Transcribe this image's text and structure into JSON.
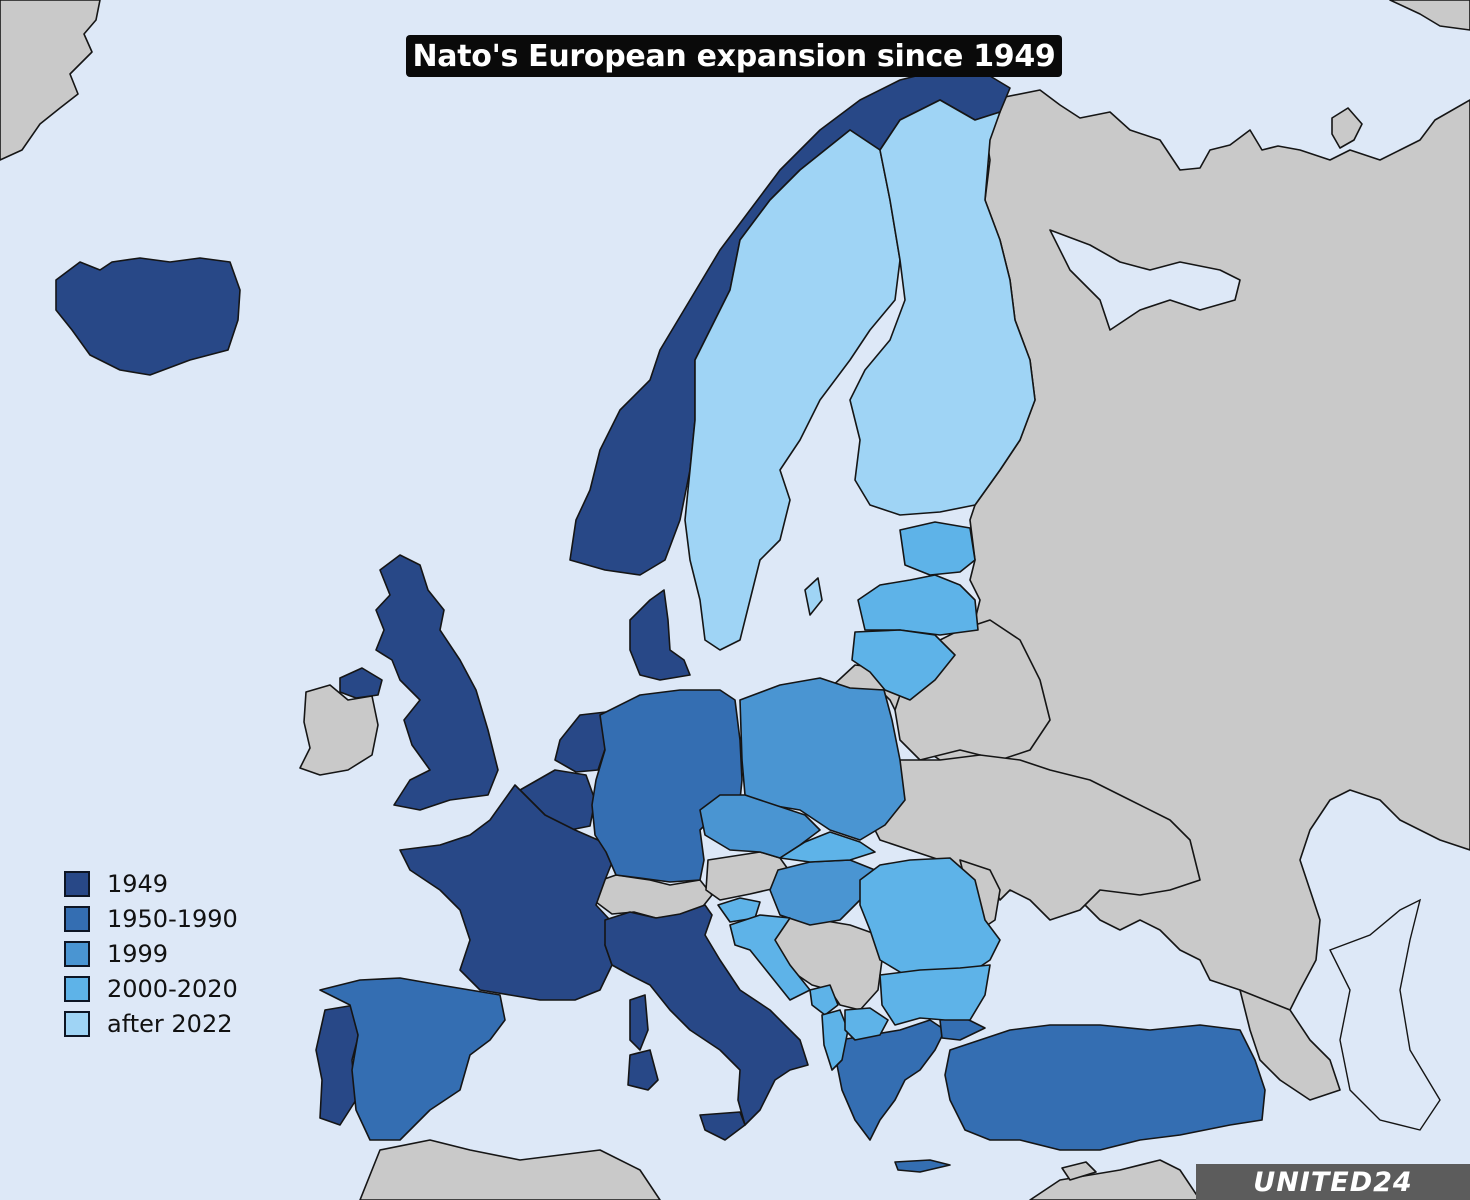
{
  "title": "Nato's European expansion since 1949",
  "colors": {
    "sea": "#dde8f7",
    "non_member": "#c9c9c9",
    "border": "#151515"
  },
  "legend": [
    {
      "label": "1949",
      "color": "#284887"
    },
    {
      "label": "1950-1990",
      "color": "#346eb2"
    },
    {
      "label": "1999",
      "color": "#4a95d2"
    },
    {
      "label": "2000-2020",
      "color": "#5eb3e8"
    },
    {
      "label": "after 2022",
      "color": "#9fd4f5"
    }
  ],
  "countries": [
    {
      "name": "Iceland",
      "group": "1949"
    },
    {
      "name": "Norway",
      "group": "1949"
    },
    {
      "name": "United Kingdom",
      "group": "1949"
    },
    {
      "name": "Denmark",
      "group": "1949"
    },
    {
      "name": "Netherlands",
      "group": "1949"
    },
    {
      "name": "Belgium",
      "group": "1949"
    },
    {
      "name": "Luxembourg",
      "group": "1949"
    },
    {
      "name": "France",
      "group": "1949"
    },
    {
      "name": "Italy",
      "group": "1949"
    },
    {
      "name": "Portugal",
      "group": "1949"
    },
    {
      "name": "Greece",
      "group": "1950-1990"
    },
    {
      "name": "Turkey",
      "group": "1950-1990"
    },
    {
      "name": "Germany",
      "group": "1950-1990"
    },
    {
      "name": "Spain",
      "group": "1950-1990"
    },
    {
      "name": "Poland",
      "group": "1999"
    },
    {
      "name": "Czech Republic",
      "group": "1999"
    },
    {
      "name": "Hungary",
      "group": "1999"
    },
    {
      "name": "Estonia",
      "group": "2000-2020"
    },
    {
      "name": "Latvia",
      "group": "2000-2020"
    },
    {
      "name": "Lithuania",
      "group": "2000-2020"
    },
    {
      "name": "Slovakia",
      "group": "2000-2020"
    },
    {
      "name": "Slovenia",
      "group": "2000-2020"
    },
    {
      "name": "Romania",
      "group": "2000-2020"
    },
    {
      "name": "Bulgaria",
      "group": "2000-2020"
    },
    {
      "name": "Croatia",
      "group": "2000-2020"
    },
    {
      "name": "Albania",
      "group": "2000-2020"
    },
    {
      "name": "Montenegro",
      "group": "2000-2020"
    },
    {
      "name": "North Macedonia",
      "group": "2000-2020"
    },
    {
      "name": "Finland",
      "group": "after 2022"
    },
    {
      "name": "Sweden",
      "group": "after 2022"
    }
  ],
  "watermark": "UNITED24"
}
